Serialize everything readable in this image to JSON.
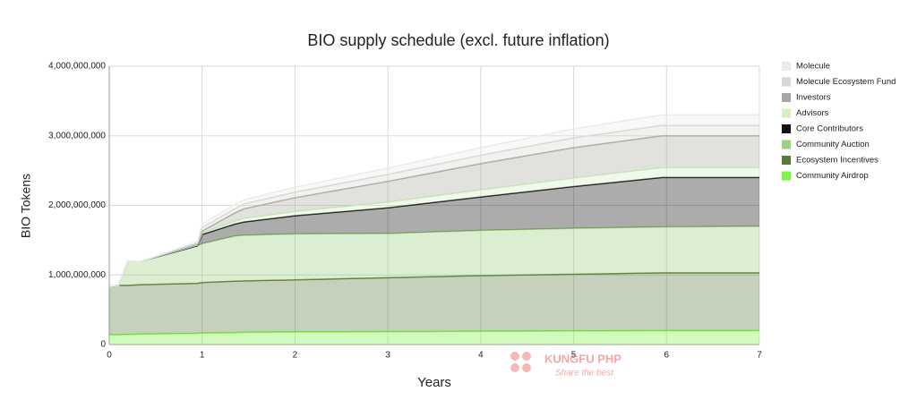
{
  "chart_data": {
    "type": "stacked_area",
    "title": "BIO supply schedule (excl. future inflation)",
    "x_label": "Years",
    "y_label": "BIO Tokens",
    "x": [
      0,
      0.1,
      0.2,
      0.35,
      0.95,
      1,
      1.35,
      1.45,
      2,
      3,
      4,
      5,
      5.95,
      7
    ],
    "xlim": [
      0,
      7
    ],
    "xticks": [
      0,
      1,
      2,
      3,
      4,
      5,
      6,
      7
    ],
    "ylim": [
      0,
      4000000000
    ],
    "yticks": [
      0,
      {
        "value": 1000000000,
        "label": "1,000,000,000"
      },
      {
        "value": 2000000000,
        "label": "2,000,000,000"
      },
      {
        "value": 3000000000,
        "label": "3,000,000,000"
      },
      {
        "value": 4000000000,
        "label": "4,000,000,000"
      }
    ],
    "grid": true,
    "legend": "right",
    "series": [
      {
        "name": "Community Airdrop",
        "color": "#7ef542",
        "values": [
          140000000,
          140000000,
          145000000,
          150000000,
          160000000,
          165000000,
          170000000,
          175000000,
          180000000,
          185000000,
          190000000,
          195000000,
          200000000,
          200000000
        ]
      },
      {
        "name": "Ecosystem Incentives",
        "color": "#5a7a3a",
        "values": [
          700000000,
          710000000,
          705000000,
          710000000,
          720000000,
          725000000,
          740000000,
          740000000,
          750000000,
          775000000,
          800000000,
          815000000,
          830000000,
          830000000
        ]
      },
      {
        "name": "Community Auction",
        "color": "#9ccf7e",
        "values": [
          0,
          0,
          350000000,
          340000000,
          540000000,
          560000000,
          650000000,
          655000000,
          660000000,
          635000000,
          650000000,
          660000000,
          660000000,
          670000000
        ]
      },
      {
        "name": "Core Contributors",
        "color": "#111111",
        "values": [
          0,
          0,
          0,
          0,
          0,
          130000000,
          170000000,
          190000000,
          260000000,
          370000000,
          480000000,
          600000000,
          710000000,
          700000000
        ]
      },
      {
        "name": "Advisors",
        "color": "#d6f2c2",
        "values": [
          0,
          0,
          0,
          0,
          10000000,
          20000000,
          40000000,
          50000000,
          60000000,
          80000000,
          100000000,
          120000000,
          140000000,
          140000000
        ]
      },
      {
        "name": "Investors",
        "color": "#a8a8a0",
        "values": [
          0,
          0,
          0,
          0,
          10000000,
          30000000,
          120000000,
          140000000,
          200000000,
          300000000,
          380000000,
          440000000,
          460000000,
          460000000
        ]
      },
      {
        "name": "Molecule Ecosystem Fund",
        "color": "#d6d6d2",
        "values": [
          0,
          0,
          0,
          0,
          20000000,
          50000000,
          60000000,
          70000000,
          80000000,
          100000000,
          120000000,
          140000000,
          150000000,
          150000000
        ]
      },
      {
        "name": "Molecule",
        "color": "#ebebeb",
        "values": [
          0,
          0,
          0,
          0,
          20000000,
          50000000,
          60000000,
          60000000,
          70000000,
          90000000,
          110000000,
          130000000,
          150000000,
          150000000
        ]
      }
    ],
    "watermark": {
      "brand": "KUNGFU PHP",
      "slogan": "Share the best"
    }
  }
}
